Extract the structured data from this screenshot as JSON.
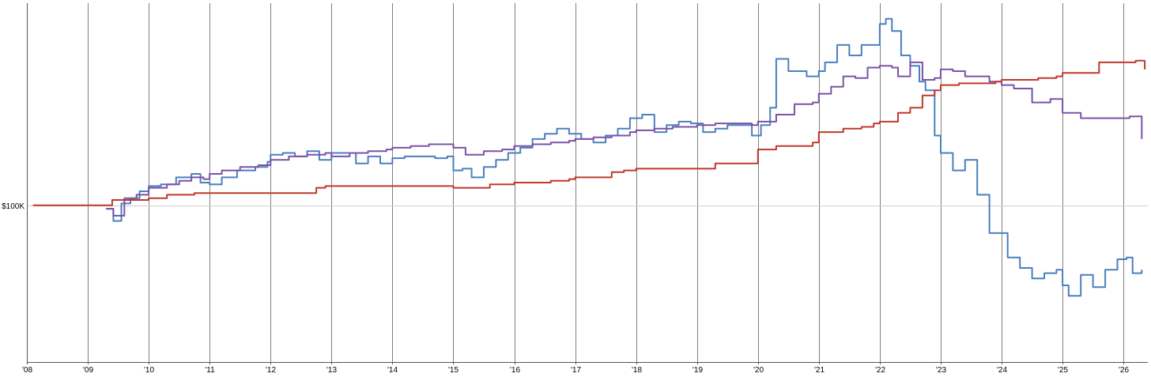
{
  "chart_data": {
    "type": "line",
    "title": "",
    "xlabel": "",
    "ylabel": "",
    "grid": true,
    "legend": "none",
    "x_ticks": [
      "'08",
      "'09",
      "'10",
      "'11",
      "'12",
      "'13",
      "'14",
      "'15",
      "'16",
      "'17",
      "'18",
      "'19",
      "'20",
      "'21",
      "'22",
      "'23",
      "'24",
      "'25",
      "'26"
    ],
    "y_reference": {
      "label": "$100K",
      "value": 100000
    },
    "xlim": [
      2008.0,
      2026.4
    ],
    "ylim": [
      55000,
      158000
    ],
    "series": [
      {
        "color": "#4a7fc0",
        "x": [
          2009.3,
          2009.42,
          2009.55,
          2009.7,
          2009.85,
          2010.0,
          2010.2,
          2010.45,
          2010.7,
          2010.85,
          2011.0,
          2011.2,
          2011.45,
          2011.75,
          2011.95,
          2012.0,
          2012.2,
          2012.4,
          2012.6,
          2012.8,
          2013.0,
          2013.2,
          2013.4,
          2013.6,
          2013.8,
          2014.0,
          2014.2,
          2014.45,
          2014.7,
          2014.9,
          2015.0,
          2015.15,
          2015.3,
          2015.5,
          2015.7,
          2015.9,
          2016.1,
          2016.3,
          2016.5,
          2016.7,
          2016.9,
          2017.1,
          2017.3,
          2017.5,
          2017.7,
          2017.9,
          2018.1,
          2018.3,
          2018.5,
          2018.7,
          2018.9,
          2019.1,
          2019.3,
          2019.5,
          2019.7,
          2019.9,
          2020.05,
          2020.2,
          2020.3,
          2020.5,
          2020.8,
          2021.0,
          2021.1,
          2021.3,
          2021.5,
          2021.7,
          2021.85,
          2022.0,
          2022.1,
          2022.2,
          2022.35,
          2022.5,
          2022.65,
          2022.75,
          2022.9,
          2023.0,
          2023.2,
          2023.4,
          2023.6,
          2023.8,
          2024.0,
          2024.1,
          2024.3,
          2024.5,
          2024.7,
          2024.9,
          2025.0,
          2025.1,
          2025.3,
          2025.5,
          2025.7,
          2025.9,
          2026.05,
          2026.15,
          2026.3
        ],
        "y": [
          99000,
          95500,
          100500,
          102000,
          104000,
          105500,
          106000,
          108000,
          109000,
          106500,
          106000,
          108000,
          110000,
          111000,
          112500,
          114500,
          115000,
          114000,
          115500,
          113000,
          115000,
          115000,
          112000,
          114000,
          112000,
          113500,
          114000,
          114000,
          113500,
          114000,
          110000,
          110500,
          108000,
          111000,
          113000,
          115000,
          116500,
          119000,
          120500,
          122000,
          120500,
          119000,
          118000,
          120000,
          122000,
          125000,
          126000,
          121000,
          123000,
          124000,
          123500,
          121000,
          122000,
          123000,
          123000,
          120000,
          123000,
          128000,
          142000,
          138500,
          137000,
          138500,
          141000,
          146000,
          143000,
          146000,
          146000,
          152000,
          153500,
          150000,
          143000,
          140000,
          135500,
          133000,
          120000,
          115000,
          110000,
          113000,
          103000,
          92000,
          92000,
          85000,
          82000,
          79000,
          80500,
          81500,
          77000,
          74000,
          80000,
          76500,
          81500,
          84500,
          85000,
          80500,
          81500
        ]
      },
      {
        "color": "#7b52a6",
        "x": [
          2009.3,
          2009.42,
          2009.6,
          2009.8,
          2010.0,
          2010.3,
          2010.5,
          2010.7,
          2010.9,
          2011.0,
          2011.2,
          2011.5,
          2011.8,
          2012.0,
          2012.3,
          2012.6,
          2012.9,
          2013.0,
          2013.3,
          2013.6,
          2013.9,
          2014.0,
          2014.3,
          2014.6,
          2014.9,
          2015.0,
          2015.2,
          2015.5,
          2015.8,
          2016.0,
          2016.3,
          2016.6,
          2016.9,
          2017.0,
          2017.3,
          2017.6,
          2017.9,
          2018.0,
          2018.3,
          2018.6,
          2018.9,
          2019.0,
          2019.3,
          2019.6,
          2019.9,
          2020.0,
          2020.3,
          2020.6,
          2020.9,
          2021.0,
          2021.2,
          2021.4,
          2021.6,
          2021.8,
          2022.0,
          2022.2,
          2022.3,
          2022.5,
          2022.7,
          2022.9,
          2023.0,
          2023.2,
          2023.4,
          2023.6,
          2023.8,
          2024.0,
          2024.2,
          2024.5,
          2024.8,
          2025.0,
          2025.3,
          2025.6,
          2025.9,
          2026.1,
          2026.3
        ],
        "y": [
          99000,
          97000,
          102000,
          103000,
          105000,
          106000,
          107000,
          108000,
          107500,
          109000,
          110000,
          111000,
          111500,
          113000,
          114000,
          114500,
          115000,
          114000,
          115000,
          115500,
          116000,
          116500,
          117000,
          117500,
          117500,
          116500,
          114500,
          115500,
          116000,
          117000,
          117500,
          118000,
          118500,
          119000,
          119500,
          120000,
          121000,
          121500,
          122000,
          122500,
          122500,
          123000,
          123500,
          123500,
          123000,
          124000,
          126000,
          129000,
          129500,
          132000,
          134000,
          137000,
          136500,
          139500,
          140000,
          139500,
          137000,
          141000,
          136000,
          136500,
          139000,
          138500,
          137000,
          137000,
          135500,
          134500,
          133500,
          129500,
          130500,
          126500,
          125000,
          125000,
          125000,
          125500,
          119000
        ]
      },
      {
        "color": "#c0392b",
        "x": [
          2008.1,
          2008.5,
          2008.8,
          2009.0,
          2009.3,
          2009.4,
          2009.8,
          2010.0,
          2010.3,
          2010.6,
          2010.75,
          2010.9,
          2011.2,
          2011.5,
          2011.8,
          2012.0,
          2012.3,
          2012.6,
          2012.75,
          2012.9,
          2013.2,
          2013.5,
          2013.8,
          2014.0,
          2014.3,
          2014.6,
          2014.9,
          2015.0,
          2015.3,
          2015.6,
          2015.8,
          2016.0,
          2016.3,
          2016.6,
          2016.9,
          2017.0,
          2017.3,
          2017.6,
          2017.8,
          2018.0,
          2018.3,
          2018.6,
          2018.9,
          2019.0,
          2019.3,
          2019.6,
          2019.8,
          2020.0,
          2020.3,
          2020.6,
          2020.9,
          2021.0,
          2021.2,
          2021.4,
          2021.7,
          2021.9,
          2022.0,
          2022.3,
          2022.5,
          2022.7,
          2022.9,
          2023.0,
          2023.3,
          2023.6,
          2023.9,
          2024.0,
          2024.3,
          2024.6,
          2024.9,
          2025.0,
          2025.3,
          2025.6,
          2025.9,
          2026.0,
          2026.2,
          2026.35
        ],
        "y": [
          100000,
          100000,
          100000,
          100000,
          100000,
          101500,
          101500,
          102000,
          103000,
          103000,
          103500,
          103500,
          103500,
          103500,
          103500,
          103500,
          103500,
          103500,
          105000,
          105500,
          105500,
          105500,
          105500,
          105500,
          105500,
          105500,
          105500,
          105000,
          105000,
          106000,
          106000,
          106500,
          106500,
          107000,
          107500,
          108000,
          108000,
          109500,
          110000,
          110500,
          110500,
          110500,
          110500,
          110500,
          112000,
          112000,
          112000,
          116000,
          117000,
          117000,
          118000,
          121000,
          121000,
          122000,
          122500,
          123500,
          124000,
          126500,
          128000,
          131500,
          133000,
          134500,
          135000,
          135000,
          135500,
          136000,
          136000,
          136500,
          137000,
          138000,
          138000,
          141000,
          141000,
          141000,
          141500,
          139000
        ]
      }
    ]
  }
}
